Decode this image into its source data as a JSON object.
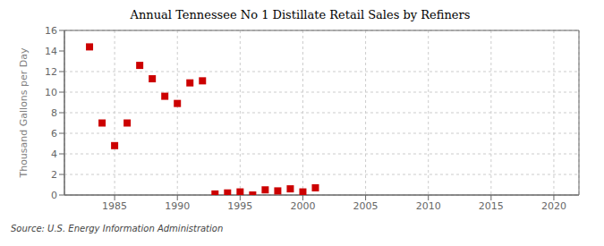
{
  "chart_data": {
    "type": "scatter",
    "title": "Annual Tennessee No 1 Distillate Retail Sales by Refiners",
    "y_label": "Thousand Gallons per Day",
    "annotations": [
      "Source: U.S. Energy Information Administration"
    ],
    "x": [
      1983,
      1984,
      1985,
      1986,
      1987,
      1988,
      1989,
      1990,
      1991,
      1992,
      1993,
      1994,
      1995,
      1996,
      1997,
      1998,
      1999,
      2000,
      2001
    ],
    "values": [
      14.4,
      7.0,
      4.8,
      7.0,
      12.6,
      11.3,
      9.6,
      8.9,
      10.9,
      11.1,
      0.1,
      0.2,
      0.3,
      0.0,
      0.5,
      0.4,
      0.6,
      0.3,
      0.7
    ],
    "color": "#cc0000",
    "marker": "square",
    "xlim": [
      1981,
      2022
    ],
    "ylim": [
      0,
      16
    ],
    "xticks": [
      1985,
      1990,
      1995,
      2000,
      2005,
      2010,
      2015,
      2020
    ],
    "yticks": [
      0,
      2,
      4,
      6,
      8,
      10,
      12,
      14,
      16
    ],
    "grid": true
  }
}
